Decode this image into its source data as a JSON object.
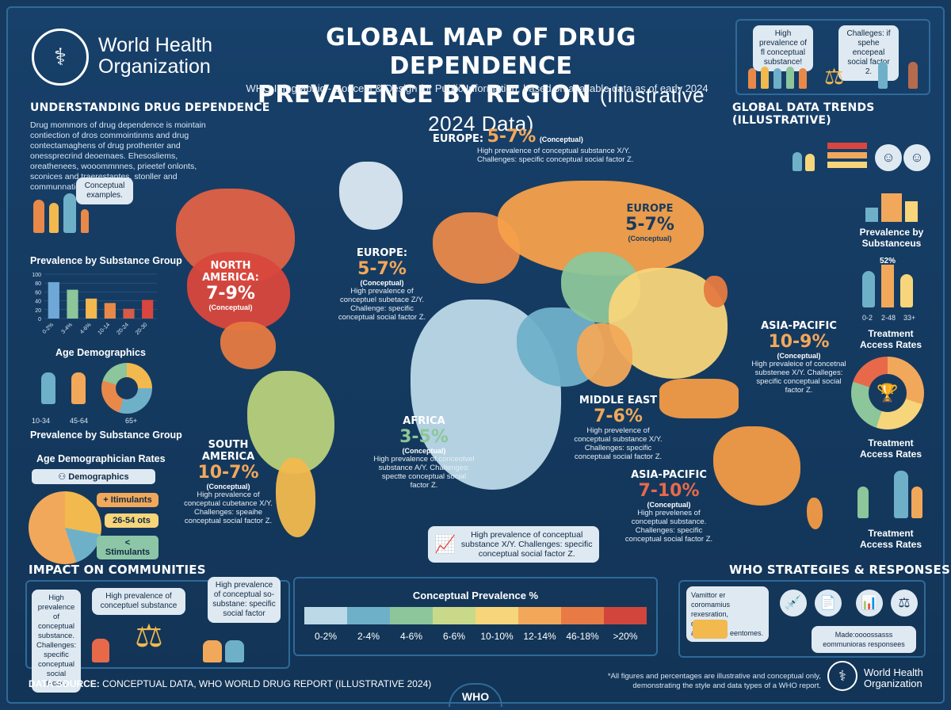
{
  "header": {
    "org_name_line1": "World Health",
    "org_name_line2": "Organization",
    "title_line1": "GLOBAL MAP OF DRUG DEPENDENCE",
    "title_line2_bold": "PREVALENCE BY REGION",
    "title_line2_light": "(Illustrative 2024 Data)",
    "subtitle": "WHO Infographic - Concept & Design for Public Information, based on available data as of early 2024",
    "bubble_left": "High prevalence of fl conceptual substance!",
    "bubble_right": "Challeges: if spehe encepeal social factor 2."
  },
  "left": {
    "understanding_title": "UNDERSTANDING DRUG DEPENDENCE",
    "understanding_text": "Drug mommors of drug dependence is mointain contiection of dros commointinms and drug contectamaghens of drug prothenter and onessprecrind deoemaes. Ehesosliems, oreathenees, wooommnnes, prieetef onlonts, sconices and traerestantes, stonller and communnations thali stuies.",
    "conceptual_examples": "Conceptual examples.",
    "prevalence_group_title": "Prevalence by Substance Group",
    "age_demographics_title": "Age Demographics",
    "age_label_1": "10-34",
    "age_label_2": "45-64",
    "age_label_3": "65+",
    "prevalence_group_title_2": "Prevalence by Substance Group",
    "age_rates_title": "Age Demographician Rates",
    "demographics_pill": "Demographics",
    "pill_1": "+ Itimulants",
    "pill_2": "26-54 ots",
    "pill_3": "< Stimulants"
  },
  "chart_data": [
    {
      "type": "bar",
      "title": "Prevalence by Substance Group",
      "categories": [
        "0-2%",
        "3-4%",
        "4-6%",
        "10-14",
        "20-24",
        "20-30"
      ],
      "values": [
        82,
        65,
        45,
        35,
        22,
        42
      ],
      "ylim": [
        0,
        100
      ],
      "yticks": [
        0,
        20,
        40,
        60,
        80,
        100
      ],
      "colors": [
        "#6fa8d6",
        "#8cc69a",
        "#f2b94e",
        "#e8894a",
        "#d65b49",
        "#d9463f"
      ]
    },
    {
      "type": "table",
      "title": "Conceptual Prevalence %",
      "categories": [
        "0-2%",
        "2-4%",
        "4-6%",
        "6-6%",
        "10-10%",
        "12-14%",
        "46-18%",
        ">20%"
      ],
      "colors": [
        "#bcd9e8",
        "#6fb0c9",
        "#8cc69a",
        "#c9d98a",
        "#f7d57a",
        "#f2a85a",
        "#e87b45",
        "#d2453c"
      ]
    }
  ],
  "map": {
    "regions": [
      {
        "name": "EUROPE:",
        "value": "5-7%",
        "conceptual": "(Conceptual)",
        "desc": "High prevalence of conceptual substance X/Y. Challenges: specific conceptual social factor Z."
      },
      {
        "name": "EUROPE",
        "value": "5-7%",
        "conceptual": "(Conceptual)",
        "desc": ""
      },
      {
        "name": "NORTH AMERICA:",
        "value": "7-9%",
        "conceptual": "(Conceptual)",
        "desc": ""
      },
      {
        "name": "EUROPE:",
        "value": "5-7%",
        "conceptual": "(Conceptual)",
        "desc": "High prevalence of conceptuel subetace Z/Y. Challenge: specific conceptual social factor Z."
      },
      {
        "name": "ASIA-PACIFIC",
        "value": "10-9%",
        "conceptual": "(Conceptual)",
        "desc": "High prevaleice of concetnal substenee X/Y. Challeges: specific conceptual social factor Z."
      },
      {
        "name": "MIDDLE EAST",
        "value": "7-6%",
        "conceptual": "",
        "desc": "High prevelence of conceptual substance X/Y. Challenges: specific conceptual social factor Z."
      },
      {
        "name": "AFRICA",
        "value": "3-5%",
        "conceptual": "(Conceptual)",
        "desc": "High prevalence of conceotvel substance A/Y. Challenges: spectte conceptual social factor Z."
      },
      {
        "name": "SOUTH AMERICA",
        "value": "10-7%",
        "conceptual": "(Conceptual)",
        "desc": "High prevalence of conceptual cubetance X/Y. Challenges: speaihe conceptual social factor Z."
      },
      {
        "name": "ASIA-PACIFIC",
        "value": "7-10%",
        "conceptual": "(Conceptual)",
        "desc": "High prevelenes of conceptual substance. Challenges: specific conceptual social factor Z."
      }
    ],
    "callout": "High prevalence of conceptual substance X/Y. Challenges: specific conceptual social factor Z.",
    "legend_title": "Conceptual Prevalence %"
  },
  "right": {
    "trends_title": "GLOBAL DATA TRENDS (ILLUSTRATIVE)",
    "prevalence_by": "Prevalence by Substanceus",
    "percent_label": "52%",
    "age_axis": [
      "0-2",
      "2-48",
      "33+"
    ],
    "treatment_1": "Treatment Access Rates",
    "treatment_2": "Treatment Access Rates",
    "treatment_3": "Treatment Access Rates"
  },
  "bottom": {
    "impact_title": "IMPACT ON COMMUNITIES",
    "impact_box": "High prevalence of conceptual substance. Challenges: specific conceptual social factor.",
    "impact_bubble_1": "High prevalence of conceptuel substance",
    "impact_bubble_2": "High prevalence of conceptual so-substane: specific social factor",
    "strategies_title": "WHO STRATEGIES & RESPONSES",
    "strategies_text": "Vamittor er coromamius rexesration, dotmsems, antimunons eentomes.",
    "strategies_arrow": "Made:oooossasss eommunioras responsees",
    "data_source_bold": "DATA SOURCE:",
    "data_source_text": "CONCEPTUAL DATA, WHO WORLD DRUG REPORT (ILLUSTRATIVE 2024)",
    "footnote": "*All figures and percentages are illustrative and conceptual only, demonstrating the style and data types of a WHO report.",
    "who_tab": "WHO",
    "org_line1": "World Health",
    "org_line2": "Organization"
  },
  "colors": {
    "background": "#163a5f",
    "north_america": "#d9553f",
    "greenland": "#dbe9f1",
    "russia": "#f5a04a",
    "china": "#f7d57a",
    "south_america": "#b8d07a",
    "africa": "#bcd9e8",
    "australia": "#f29a45"
  }
}
